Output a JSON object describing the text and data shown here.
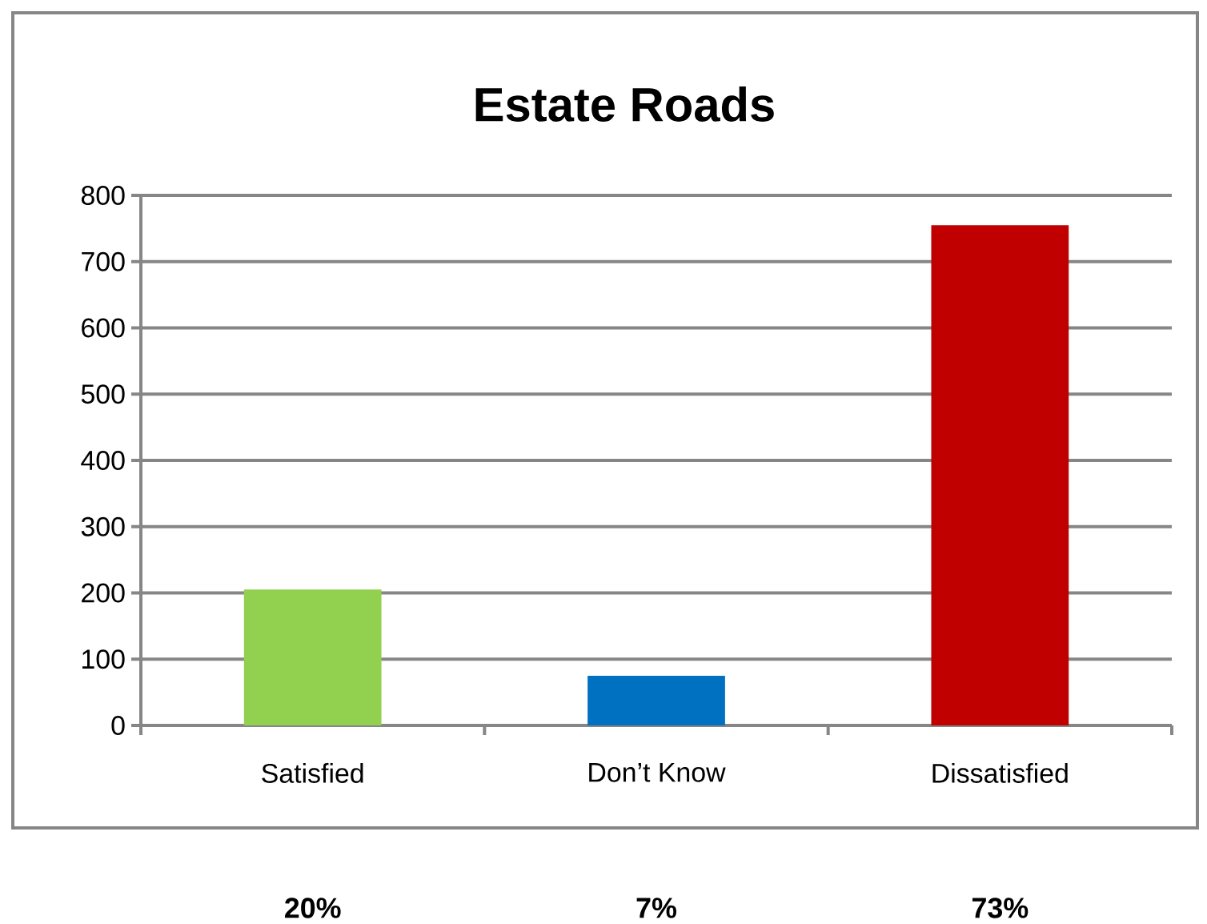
{
  "chart_data": {
    "type": "bar",
    "title": "Estate Roads",
    "categories": [
      "Satisfied",
      "Don’t  Know",
      "Dissatisfied"
    ],
    "values": [
      205,
      75,
      755
    ],
    "colors": [
      "#92d050",
      "#0070c0",
      "#c00000"
    ],
    "annotations": [
      "20%",
      "7%",
      "73%"
    ],
    "ylim": [
      0,
      800
    ],
    "yticks": [
      0,
      100,
      200,
      300,
      400,
      500,
      600,
      700,
      800
    ],
    "grid": "y"
  }
}
